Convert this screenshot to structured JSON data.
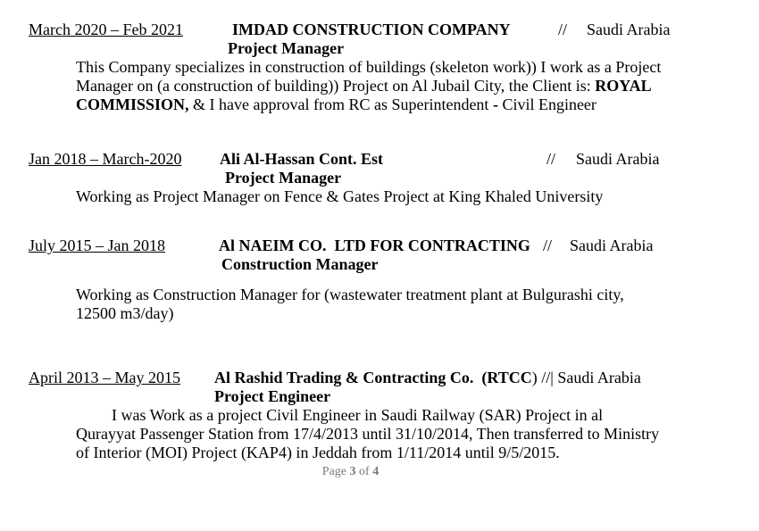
{
  "page": {
    "background_color": "#ffffff",
    "text_color": "#000000",
    "footer_color": "#7a7a7a"
  },
  "entries": [
    {
      "date_range": "March 2020 – Feb 2021",
      "company": "IMDAD CONSTRUCTION COMPANY",
      "separator": "//",
      "location": "Saudi Arabia",
      "role": "Project Manager",
      "body": [
        {
          "segs": [
            {
              "t": "This Company specializes in construction of buildings (skeleton work)) I work as a Project"
            }
          ]
        },
        {
          "segs": [
            {
              "t": "Manager on (a construction of building)) Project on Al Jubail City, the Client is: "
            },
            {
              "t": "ROYAL",
              "b": true
            }
          ]
        },
        {
          "segs": [
            {
              "t": "COMMISSION,",
              "b": true
            },
            {
              "t": " & I have approval from RC as Superintendent "
            },
            {
              "t": "-",
              "b": true
            },
            {
              "t": " Civil Engineer"
            }
          ]
        }
      ]
    },
    {
      "date_range": "Jan 2018 – March-2020",
      "company": "Ali Al-Hassan Cont. Est",
      "separator": "//",
      "location": "Saudi Arabia",
      "role": "Project Manager",
      "body": [
        {
          "segs": [
            {
              "t": "Working as Project Manager on Fence & Gates Project at King Khaled University"
            }
          ]
        }
      ]
    },
    {
      "date_range": "July 2015 – Jan 2018",
      "company": "Al NAEIM CO.  LTD FOR CONTRACTING",
      "separator": "//",
      "location": "Saudi Arabia",
      "role": "Construction Manager",
      "body": [
        {
          "segs": [
            {
              "t": "Working as Construction Manager for (wastewater treatment plant at Bulgurashi city,"
            }
          ]
        },
        {
          "segs": [
            {
              "t": "12500 m3/day)"
            }
          ]
        }
      ]
    },
    {
      "date_range": "April 2013 – May 2015",
      "company": "Al Rashid Trading & Contracting Co.  (RTCC",
      "company_close": ")",
      "separator": "//|",
      "location": "Saudi Arabia",
      "role": "Project Engineer",
      "body": [
        {
          "indent": 40,
          "segs": [
            {
              "t": "I was Work as a project Civil Engineer in Saudi Railway (SAR) Project in al"
            }
          ]
        },
        {
          "segs": [
            {
              "t": "Qurayyat Passenger Station from 17/4/2013 until 31/10/2014, Then transferred to Ministry"
            }
          ]
        },
        {
          "segs": [
            {
              "t": "of Interior (MOI) Project (KAP4) in Jeddah from 1/11/2014 until 9/5/2015."
            }
          ]
        }
      ]
    }
  ],
  "footer": {
    "lines": [
      {
        "segs": [
          {
            "t": "Page "
          },
          {
            "t": "3",
            "b": true
          },
          {
            "t": " of "
          },
          {
            "t": "4",
            "b": true
          }
        ]
      }
    ]
  }
}
